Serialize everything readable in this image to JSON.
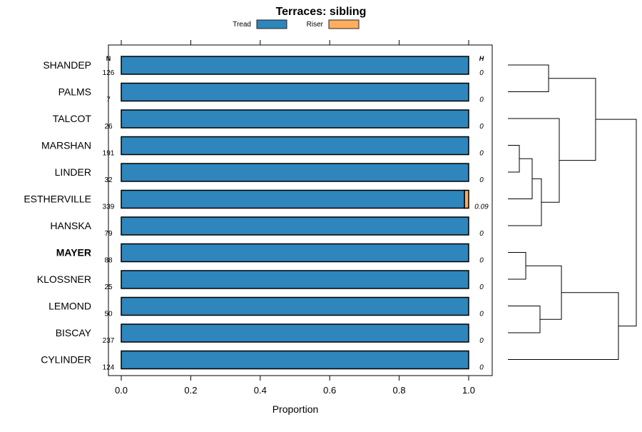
{
  "chart_data": {
    "type": "bar",
    "orientation": "horizontal-stacked",
    "title": "Terraces: sibling",
    "xlabel": "Proportion",
    "xlim": [
      0,
      1
    ],
    "xticks": [
      "0.0",
      "0.2",
      "0.4",
      "0.6",
      "0.8",
      "1.0"
    ],
    "xtick_values": [
      0,
      0.2,
      0.4,
      0.6,
      0.8,
      1.0
    ],
    "n_header": "N",
    "h_header": "H",
    "legend": [
      {
        "name": "Tread",
        "color": "#2E86BC"
      },
      {
        "name": "Riser",
        "color": "#FFAD5F"
      }
    ],
    "legend_placement": "top",
    "highlighted_category": "MAYER",
    "categories": [
      "SHANDEP",
      "PALMS",
      "TALCOT",
      "MARSHAN",
      "LINDER",
      "ESTHERVILLE",
      "HANSKA",
      "MAYER",
      "KLOSSNER",
      "LEMOND",
      "BISCAY",
      "CYLINDER"
    ],
    "n": [
      "126",
      "7",
      "26",
      "191",
      "32",
      "339",
      "79",
      "88",
      "25",
      "50",
      "237",
      "124"
    ],
    "h": [
      "0",
      "0",
      "0",
      "0",
      "0",
      "0.09",
      "0",
      "0",
      "0",
      "0",
      "0",
      "0"
    ],
    "series": [
      {
        "name": "Tread",
        "values": [
          1,
          1,
          1,
          1,
          1,
          0.988,
          1,
          1,
          1,
          1,
          1,
          1
        ]
      },
      {
        "name": "Riser",
        "values": [
          0,
          0,
          0,
          0,
          0,
          0.012,
          0,
          0,
          0,
          0,
          0,
          0
        ]
      }
    ],
    "dendrogram": {
      "merges": [
        {
          "a": "SHANDEP",
          "b": "PALMS",
          "id": "m1",
          "height": 0.317
        },
        {
          "a": "MARSHAN",
          "b": "LINDER",
          "id": "m2",
          "height": 0.089
        },
        {
          "a": "m2",
          "b": "ESTHERVILLE",
          "id": "m3",
          "height": 0.189
        },
        {
          "a": "m3",
          "b": "HANSKA",
          "id": "m4",
          "height": 0.261
        },
        {
          "a": "TALCOT",
          "b": "m4",
          "id": "m5",
          "height": 0.4
        },
        {
          "a": "m1",
          "b": "m5",
          "id": "m6",
          "height": 0.683
        },
        {
          "a": "MAYER",
          "b": "KLOSSNER",
          "id": "m7",
          "height": 0.139
        },
        {
          "a": "LEMOND",
          "b": "BISCAY",
          "id": "m8",
          "height": 0.25
        },
        {
          "a": "m7",
          "b": "m8",
          "id": "m9",
          "height": 0.417
        },
        {
          "a": "m9",
          "b": "CYLINDER",
          "id": "m10",
          "height": 0.861
        },
        {
          "a": "m6",
          "b": "m10",
          "id": "m11",
          "height": 1.0
        }
      ]
    }
  }
}
